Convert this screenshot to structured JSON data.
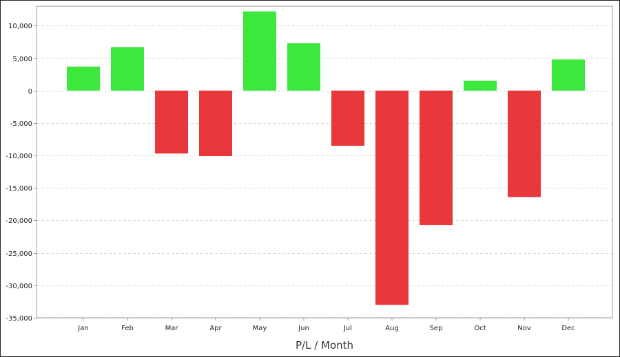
{
  "chart_data": {
    "type": "bar",
    "title": "",
    "xlabel": "P/L / Month",
    "ylabel": "",
    "categories": [
      "Jan",
      "Feb",
      "Mar",
      "Apr",
      "May",
      "Jun",
      "Jul",
      "Aug",
      "Sep",
      "Oct",
      "Nov",
      "Dec"
    ],
    "values": [
      3700,
      6700,
      -9700,
      -10100,
      12200,
      7300,
      -8500,
      -33000,
      -20700,
      1500,
      -16400,
      4800
    ],
    "ylim": [
      -35000,
      13000
    ],
    "yticks": [
      10000,
      5000,
      0,
      -5000,
      -10000,
      -15000,
      -20000,
      -25000,
      -30000,
      -35000
    ],
    "ytick_labels": [
      "10,000",
      "5,000",
      "0",
      "-5,000",
      "-10,000",
      "-15,000",
      "-20,000",
      "-25,000",
      "-30,000",
      "-35,000"
    ],
    "grid": true,
    "legend": "none",
    "colors": {
      "positive": "#3ce83c",
      "negative": "#e8383c",
      "grid": "#d8d8d8",
      "axis": "#999999"
    }
  }
}
